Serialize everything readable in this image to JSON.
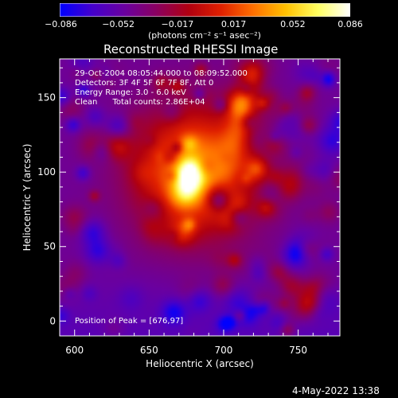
{
  "colorbar": {
    "tick_labels": [
      "−0.086",
      "−0.052",
      "−0.017",
      "0.017",
      "0.052",
      "0.086"
    ],
    "tick_values": [
      -0.086,
      -0.052,
      -0.017,
      0.017,
      0.052,
      0.086
    ],
    "units_label": "(photons cm⁻² s⁻¹ asec⁻²)",
    "colors": [
      "#0000ff",
      "#4400cc",
      "#6a00a0",
      "#8a0060",
      "#b00010",
      "#e02000",
      "#ff7000",
      "#ffc000",
      "#ffff60",
      "#ffffff"
    ]
  },
  "chart_data": {
    "type": "heatmap",
    "title": "Reconstructed RHESSI Image",
    "xlabel": "Heliocentric X (arcsec)",
    "ylabel": "Heliocentric Y (arcsec)",
    "xlim": [
      590,
      778
    ],
    "ylim": [
      -10,
      176
    ],
    "x_ticks": [
      600,
      650,
      700,
      750
    ],
    "y_ticks": [
      0,
      50,
      100,
      150
    ],
    "annotations": {
      "line1": "29-Oct-2004 08:05:44.000 to 08:09:52.000",
      "line2": "Detectors: 3F 4F 5F 6F 7F 8F, Att 0",
      "line3": "Energy Range: 3.0 - 6.0 keV",
      "line4": "Clean      Total counts: 2.86E+04",
      "peak": "Position of Peak = [676,97]"
    },
    "peak": {
      "x": 676,
      "y": 97
    }
  },
  "footer": {
    "date": "4-May-2022 13:38"
  }
}
